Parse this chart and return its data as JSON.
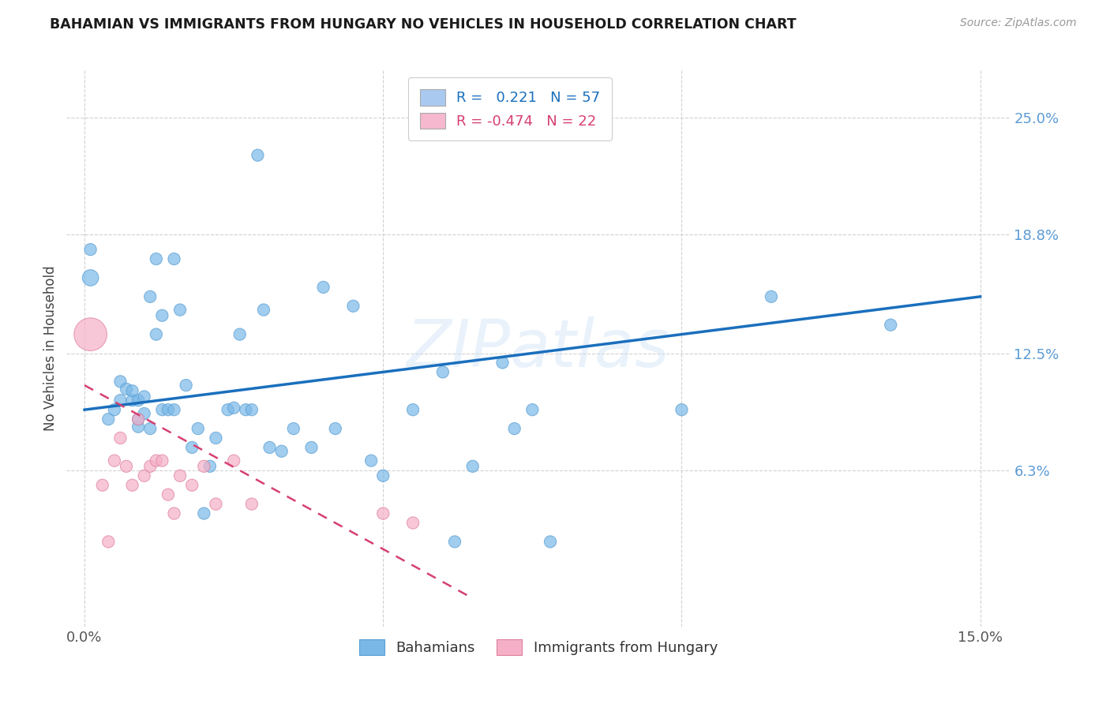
{
  "title": "BAHAMIAN VS IMMIGRANTS FROM HUNGARY NO VEHICLES IN HOUSEHOLD CORRELATION CHART",
  "source": "Source: ZipAtlas.com",
  "ylabel": "No Vehicles in Household",
  "ytick_labels": [
    "25.0%",
    "18.8%",
    "12.5%",
    "6.3%"
  ],
  "ytick_values": [
    0.25,
    0.188,
    0.125,
    0.063
  ],
  "xtick_labels": [
    "0.0%",
    "",
    "",
    "15.0%"
  ],
  "xtick_values": [
    0.0,
    0.05,
    0.1,
    0.15
  ],
  "legend_label1": "R =   0.221   N = 57",
  "legend_label2": "R = -0.474   N = 22",
  "legend_color1": "#aac9f0",
  "legend_color2": "#f5b8ce",
  "watermark": "ZIPatlas",
  "bahamian_color": "#7ab8e8",
  "bahamian_edge": "#5a9fd4",
  "hungary_color": "#f5b0c8",
  "hungary_edge": "#e0809a",
  "trend_blue": "#1a6fbd",
  "trend_pink": "#d64070",
  "bahamians_label": "Bahamians",
  "hungary_label": "Immigrants from Hungary",
  "blue_x": [
    0.001,
    0.001,
    0.004,
    0.005,
    0.006,
    0.006,
    0.007,
    0.008,
    0.008,
    0.009,
    0.009,
    0.009,
    0.01,
    0.01,
    0.011,
    0.011,
    0.012,
    0.012,
    0.013,
    0.013,
    0.014,
    0.015,
    0.015,
    0.016,
    0.017,
    0.018,
    0.019,
    0.02,
    0.021,
    0.022,
    0.024,
    0.025,
    0.026,
    0.027,
    0.028,
    0.029,
    0.03,
    0.031,
    0.033,
    0.035,
    0.038,
    0.04,
    0.042,
    0.045,
    0.048,
    0.05,
    0.055,
    0.06,
    0.062,
    0.065,
    0.07,
    0.072,
    0.075,
    0.078,
    0.1,
    0.115,
    0.135
  ],
  "blue_y": [
    0.165,
    0.18,
    0.09,
    0.095,
    0.1,
    0.11,
    0.106,
    0.1,
    0.105,
    0.086,
    0.09,
    0.1,
    0.093,
    0.102,
    0.085,
    0.155,
    0.135,
    0.175,
    0.095,
    0.145,
    0.095,
    0.095,
    0.175,
    0.148,
    0.108,
    0.075,
    0.085,
    0.04,
    0.065,
    0.08,
    0.095,
    0.096,
    0.135,
    0.095,
    0.095,
    0.23,
    0.148,
    0.075,
    0.073,
    0.085,
    0.075,
    0.16,
    0.085,
    0.15,
    0.068,
    0.06,
    0.095,
    0.115,
    0.025,
    0.065,
    0.12,
    0.085,
    0.095,
    0.025,
    0.095,
    0.155,
    0.14
  ],
  "pink_x": [
    0.001,
    0.003,
    0.004,
    0.005,
    0.006,
    0.007,
    0.008,
    0.009,
    0.01,
    0.011,
    0.012,
    0.013,
    0.014,
    0.015,
    0.016,
    0.018,
    0.02,
    0.022,
    0.025,
    0.028,
    0.05,
    0.055
  ],
  "pink_y": [
    0.135,
    0.055,
    0.025,
    0.068,
    0.08,
    0.065,
    0.055,
    0.09,
    0.06,
    0.065,
    0.068,
    0.068,
    0.05,
    0.04,
    0.06,
    0.055,
    0.065,
    0.045,
    0.068,
    0.045,
    0.04,
    0.035
  ],
  "blue_dot_size": 120,
  "blue_big_size": 220,
  "pink_dot_size": 120,
  "pink_big_size": 900,
  "blue_trend_x0": 0.0,
  "blue_trend_x1": 0.15,
  "blue_trend_y0": 0.095,
  "blue_trend_y1": 0.155,
  "pink_trend_x0": 0.0,
  "pink_trend_x1": 0.065,
  "pink_trend_y0": 0.108,
  "pink_trend_y1": -0.005,
  "xlim": [
    -0.003,
    0.155
  ],
  "ylim": [
    -0.02,
    0.275
  ]
}
